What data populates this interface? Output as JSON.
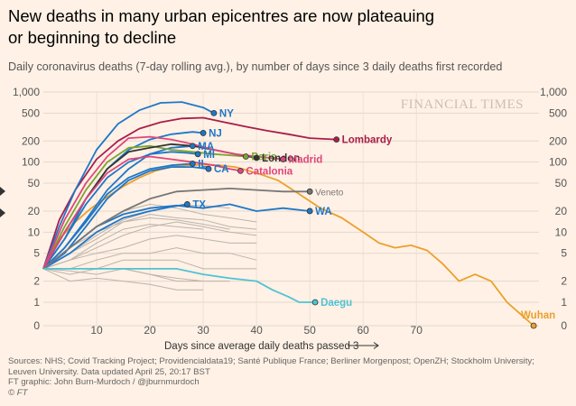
{
  "header": {
    "title_line1": "New deaths in many urban epicentres are now plateauing",
    "title_line2": "or beginning to decline",
    "subtitle": "Daily coronavirus deaths (7-day rolling avg.), by number of days since 3 daily deaths first recorded"
  },
  "watermark": "FINANCIAL TIMES",
  "footer": {
    "sources_line1": "Sources: NHS; Covid Tracking Project; Providencialdata19; Santé Publique France; Berliner Morgenpost; OpenZH; Stockholm University;",
    "sources_line2": "Leuven University. Data updated April 25, 20:17 BST",
    "credit": "FT graphic: John Burn-Murdoch / @jburnmurdoch",
    "copyright": "© FT"
  },
  "icons": {
    "nav_left": "chevron-right-icon"
  },
  "chart_data": {
    "type": "line",
    "xlabel": "Days since average daily deaths passed 3",
    "xlabel_arrow": "→",
    "x_ticks": [
      10,
      20,
      30,
      40,
      50,
      60,
      70
    ],
    "xlim": [
      0,
      93
    ],
    "y_scale": "log (with 0)",
    "y_ticks": [
      0,
      1,
      2,
      5,
      10,
      20,
      50,
      100,
      200,
      500,
      1000
    ],
    "y_tick_labels": [
      "0",
      "1",
      "2",
      "5",
      "10",
      "20",
      "50",
      "100",
      "200",
      "500",
      "1,000"
    ],
    "ylim": [
      0,
      1000
    ],
    "grid": true,
    "colors": {
      "NY": "#1f77c8",
      "NJ": "#1f77c8",
      "MA": "#1f77c8",
      "MI": "#1f77c8",
      "IL": "#1f77c8",
      "CA": "#1f77c8",
      "TX": "#1f77c8",
      "WA": "#1f77c8",
      "Lombardy": "#a81e4b",
      "Paris": "#7aa430",
      "London": "#333333",
      "Madrid": "#e0457b",
      "Catalonia": "#e0457b",
      "Veneto": "#777777",
      "Daegu": "#4ec3d4",
      "Wuhan": "#eba02b",
      "other": "#bcb3aa"
    },
    "series": [
      {
        "name": "Wuhan",
        "x": [
          0,
          3,
          6,
          9,
          12,
          15,
          18,
          21,
          24,
          27,
          30,
          33,
          36,
          40,
          44,
          48,
          52,
          56,
          60,
          63,
          66,
          69,
          72,
          75,
          78,
          81,
          84,
          87,
          90,
          92
        ],
        "y": [
          3,
          8,
          14,
          22,
          32,
          45,
          60,
          75,
          85,
          90,
          92,
          90,
          85,
          70,
          55,
          35,
          22,
          16,
          10,
          7,
          6,
          6.5,
          5.5,
          3.5,
          2,
          2.5,
          2,
          1,
          0.4,
          0
        ]
      },
      {
        "name": "Lombardy",
        "x": [
          0,
          3,
          6,
          10,
          14,
          18,
          22,
          26,
          30,
          34,
          38,
          42,
          46,
          50,
          55
        ],
        "y": [
          3,
          15,
          40,
          110,
          200,
          300,
          370,
          420,
          430,
          370,
          320,
          280,
          250,
          220,
          210
        ]
      },
      {
        "name": "NY",
        "x": [
          0,
          3,
          6,
          10,
          14,
          18,
          22,
          26,
          30,
          32
        ],
        "y": [
          3,
          12,
          40,
          150,
          350,
          550,
          700,
          720,
          600,
          500
        ]
      },
      {
        "name": "NJ",
        "x": [
          0,
          4,
          8,
          12,
          16,
          20,
          24,
          28,
          30
        ],
        "y": [
          3,
          8,
          30,
          80,
          150,
          210,
          250,
          270,
          260
        ]
      },
      {
        "name": "MA",
        "x": [
          0,
          4,
          8,
          12,
          16,
          20,
          24,
          28
        ],
        "y": [
          3,
          6,
          15,
          40,
          80,
          130,
          160,
          170
        ]
      },
      {
        "name": "MI",
        "x": [
          0,
          4,
          8,
          12,
          16,
          20,
          24,
          27,
          29
        ],
        "y": [
          3,
          8,
          25,
          60,
          100,
          130,
          140,
          135,
          130
        ]
      },
      {
        "name": "IL",
        "x": [
          0,
          4,
          8,
          12,
          16,
          20,
          24,
          28
        ],
        "y": [
          3,
          6,
          14,
          35,
          60,
          80,
          90,
          95
        ]
      },
      {
        "name": "CA",
        "x": [
          0,
          4,
          8,
          12,
          16,
          20,
          24,
          28,
          31
        ],
        "y": [
          3,
          5,
          12,
          30,
          55,
          75,
          85,
          85,
          80
        ]
      },
      {
        "name": "TX",
        "x": [
          0,
          5,
          10,
          15,
          20,
          24,
          27
        ],
        "y": [
          3,
          5,
          10,
          16,
          20,
          23,
          25
        ]
      },
      {
        "name": "WA",
        "x": [
          0,
          5,
          10,
          15,
          20,
          25,
          30,
          35,
          40,
          45,
          50
        ],
        "y": [
          3,
          6,
          12,
          18,
          22,
          24,
          22,
          25,
          20,
          22,
          20
        ]
      },
      {
        "name": "Paris",
        "x": [
          0,
          4,
          8,
          12,
          16,
          20,
          24,
          28,
          32,
          35,
          38
        ],
        "y": [
          3,
          12,
          40,
          100,
          160,
          170,
          150,
          140,
          130,
          125,
          120
        ]
      },
      {
        "name": "London",
        "x": [
          0,
          4,
          8,
          12,
          16,
          20,
          24,
          28,
          32,
          36,
          40
        ],
        "y": [
          3,
          10,
          30,
          80,
          140,
          160,
          180,
          170,
          150,
          130,
          115
        ]
      },
      {
        "name": "Madrid",
        "x": [
          0,
          4,
          8,
          12,
          16,
          20,
          24,
          28,
          32,
          36,
          40,
          45
        ],
        "y": [
          3,
          15,
          50,
          120,
          220,
          230,
          210,
          180,
          150,
          130,
          120,
          110
        ]
      },
      {
        "name": "Catalonia",
        "x": [
          0,
          4,
          8,
          12,
          16,
          20,
          24,
          28,
          32,
          35,
          37
        ],
        "y": [
          3,
          10,
          30,
          70,
          110,
          120,
          110,
          100,
          90,
          80,
          75
        ]
      },
      {
        "name": "Veneto",
        "x": [
          0,
          5,
          10,
          15,
          20,
          25,
          30,
          35,
          40,
          45,
          50
        ],
        "y": [
          3,
          6,
          12,
          20,
          30,
          38,
          40,
          42,
          40,
          38,
          38
        ]
      },
      {
        "name": "Daegu",
        "x": [
          0,
          5,
          10,
          15,
          20,
          25,
          30,
          35,
          40,
          43,
          46,
          48,
          51
        ],
        "y": [
          3,
          3,
          3,
          3,
          3,
          3,
          2.5,
          2.2,
          2,
          1.5,
          1.2,
          1,
          1
        ]
      }
    ],
    "labels": [
      {
        "text": "NY",
        "x": 32,
        "y": 500,
        "color": "#1f77c8"
      },
      {
        "text": "NJ",
        "x": 30,
        "y": 260,
        "color": "#1f77c8"
      },
      {
        "text": "MA",
        "x": 28,
        "y": 170,
        "color": "#1f77c8"
      },
      {
        "text": "MI",
        "x": 29,
        "y": 130,
        "color": "#1f77c8"
      },
      {
        "text": "IL",
        "x": 28,
        "y": 95,
        "color": "#1f77c8"
      },
      {
        "text": "CA",
        "x": 31,
        "y": 80,
        "color": "#1f77c8"
      },
      {
        "text": "TX",
        "x": 27,
        "y": 25,
        "color": "#1f77c8"
      },
      {
        "text": "WA",
        "x": 50,
        "y": 20,
        "color": "#1f77c8"
      },
      {
        "text": "Lombardy",
        "x": 55,
        "y": 210,
        "color": "#a81e4b"
      },
      {
        "text": "Paris",
        "x": 38,
        "y": 120,
        "color": "#7aa430"
      },
      {
        "text": "London",
        "x": 40,
        "y": 115,
        "color": "#333333"
      },
      {
        "text": "Madrid",
        "x": 45,
        "y": 110,
        "color": "#e0457b"
      },
      {
        "text": "Catalonia",
        "x": 37,
        "y": 75,
        "color": "#e0457b"
      },
      {
        "text": "Veneto",
        "x": 50,
        "y": 38,
        "color": "#777777"
      },
      {
        "text": "Daegu",
        "x": 51,
        "y": 1,
        "color": "#4ec3d4"
      },
      {
        "text": "Wuhan",
        "x": 92,
        "y": 0,
        "color": "#eba02b"
      }
    ],
    "other_regions": [
      {
        "x": [
          0,
          5,
          10,
          15,
          20,
          25,
          30,
          35,
          40
        ],
        "y": [
          3,
          6,
          12,
          20,
          25,
          22,
          18,
          16,
          14
        ]
      },
      {
        "x": [
          0,
          5,
          10,
          15,
          20,
          25,
          30,
          35,
          40
        ],
        "y": [
          3,
          5,
          8,
          14,
          18,
          16,
          15,
          12,
          11
        ]
      },
      {
        "x": [
          0,
          5,
          10,
          15,
          20,
          25,
          30,
          35,
          40
        ],
        "y": [
          3,
          4,
          6,
          9,
          12,
          14,
          12,
          10,
          9
        ]
      },
      {
        "x": [
          0,
          5,
          10,
          15,
          20,
          25,
          30,
          35,
          40
        ],
        "y": [
          3,
          4,
          5,
          6,
          8,
          9,
          8,
          7,
          7
        ]
      },
      {
        "x": [
          0,
          5,
          10,
          15,
          20,
          25,
          30,
          35,
          40
        ],
        "y": [
          3,
          3,
          4,
          5,
          5,
          6,
          5,
          5,
          4
        ]
      },
      {
        "x": [
          0,
          5,
          10,
          15,
          20,
          25,
          30,
          35,
          40
        ],
        "y": [
          3,
          3,
          3,
          4,
          4,
          4,
          3,
          3,
          3
        ]
      },
      {
        "x": [
          0,
          5,
          10,
          15,
          20,
          25,
          30,
          35
        ],
        "y": [
          3,
          2.5,
          3,
          3,
          2.5,
          2,
          2,
          2
        ]
      },
      {
        "x": [
          0,
          5,
          10,
          15,
          20,
          25,
          30
        ],
        "y": [
          3,
          2,
          2.2,
          2,
          1.8,
          1.5,
          1.5
        ]
      },
      {
        "x": [
          0,
          5,
          10,
          15,
          20,
          25,
          30
        ],
        "y": [
          3,
          2.8,
          2.5,
          3,
          2.5,
          2.2,
          2
        ]
      },
      {
        "x": [
          0,
          5,
          10,
          15,
          20,
          25,
          30,
          35
        ],
        "y": [
          3,
          5,
          9,
          15,
          20,
          24,
          24,
          22
        ]
      },
      {
        "x": [
          0,
          5,
          10,
          15,
          20,
          25,
          30,
          35
        ],
        "y": [
          3,
          6,
          10,
          14,
          16,
          15,
          13,
          11
        ]
      },
      {
        "x": [
          0,
          5,
          10,
          15,
          20,
          25,
          30
        ],
        "y": [
          3,
          4,
          7,
          11,
          13,
          12,
          11
        ]
      }
    ]
  }
}
